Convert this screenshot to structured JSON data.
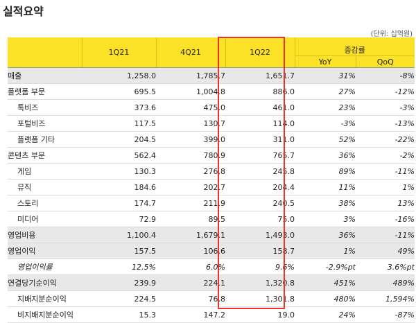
{
  "page": {
    "title": "실적요약",
    "unit_note": "(단위: 십억원)"
  },
  "table": {
    "quarters": [
      "1Q21",
      "4Q21",
      "1Q22"
    ],
    "growth_header": "증감률",
    "growth_cols": [
      "YoY",
      "QoQ"
    ],
    "highlight_column": "1Q22",
    "highlight_color": "#e8342a",
    "header_color": "#fbe227",
    "rows": [
      {
        "label": "매출",
        "q": [
          "1,258.0",
          "1,785.7",
          "1,651.7"
        ],
        "yoy": "31%",
        "qoq": "-8%"
      },
      {
        "label": "플랫폼 부문",
        "q": [
          "695.5",
          "1,004.8",
          "886.0"
        ],
        "yoy": "27%",
        "qoq": "-12%"
      },
      {
        "label": "톡비즈",
        "q": [
          "373.6",
          "475.0",
          "461.0"
        ],
        "yoy": "23%",
        "qoq": "-3%"
      },
      {
        "label": "포털비즈",
        "q": [
          "117.5",
          "130.7",
          "114.0"
        ],
        "yoy": "-3%",
        "qoq": "-13%"
      },
      {
        "label": "플랫폼 기타",
        "q": [
          "204.5",
          "399.0",
          "311.0"
        ],
        "yoy": "52%",
        "qoq": "-22%"
      },
      {
        "label": "콘텐츠 부문",
        "q": [
          "562.4",
          "780.9",
          "765.7"
        ],
        "yoy": "36%",
        "qoq": "-2%"
      },
      {
        "label": "게임",
        "q": [
          "130.3",
          "276.8",
          "245.8"
        ],
        "yoy": "89%",
        "qoq": "-11%"
      },
      {
        "label": "뮤직",
        "q": [
          "184.6",
          "202.7",
          "204.4"
        ],
        "yoy": "11%",
        "qoq": "1%"
      },
      {
        "label": "스토리",
        "q": [
          "174.7",
          "211.9",
          "240.5"
        ],
        "yoy": "38%",
        "qoq": "13%"
      },
      {
        "label": "미디어",
        "q": [
          "72.9",
          "89.5",
          "75.0"
        ],
        "yoy": "3%",
        "qoq": "-16%"
      },
      {
        "label": "영업비용",
        "q": [
          "1,100.4",
          "1,679.1",
          "1,493.0"
        ],
        "yoy": "36%",
        "qoq": "-11%"
      },
      {
        "label": "영업이익",
        "q": [
          "157.5",
          "106.6",
          "158.7"
        ],
        "yoy": "1%",
        "qoq": "49%"
      },
      {
        "label": "영업이익률",
        "q": [
          "12.5%",
          "6.0%",
          "9.6%"
        ],
        "yoy": "-2.9%pt",
        "qoq": "3.6%pt"
      },
      {
        "label": "연결당기순이익",
        "q": [
          "239.9",
          "224.1",
          "1,320.8"
        ],
        "yoy": "451%",
        "qoq": "489%"
      },
      {
        "label": "지배지분순이익",
        "q": [
          "224.5",
          "76.8",
          "1,301.8"
        ],
        "yoy": "480%",
        "qoq": "1,594%"
      },
      {
        "label": "비지배지분순이익",
        "q": [
          "15.3",
          "147.2",
          "19.0"
        ],
        "yoy": "24%",
        "qoq": "-87%"
      }
    ]
  }
}
